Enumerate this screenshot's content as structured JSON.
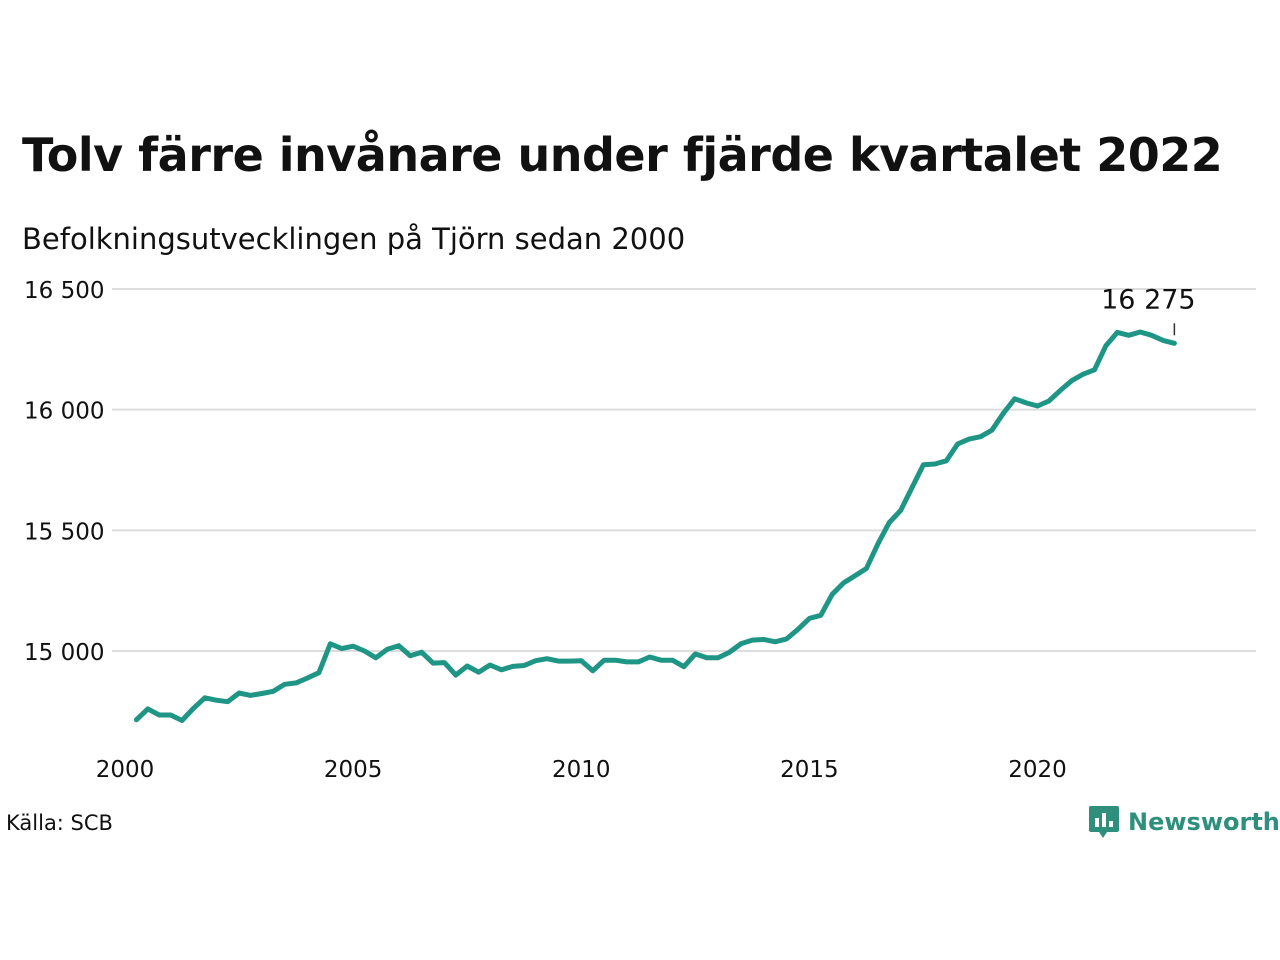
{
  "title": "Tolv färre invånare under fjärde kvartalet 2022",
  "subtitle": "Befolkningsutvecklingen på Tjörn sedan 2000",
  "source": "Källa: SCB",
  "brand": {
    "name": "Newsworthy",
    "icon": "newsworthy-logo-icon",
    "color": "#2e8f7d"
  },
  "chart_data": {
    "type": "line",
    "title": "Tolv färre invånare under fjärde kvartalet 2022",
    "subtitle": "Befolkningsutvecklingen på Tjörn sedan 2000",
    "xlabel": "",
    "ylabel": "",
    "xlim": [
      2000,
      2024
    ],
    "ylim": [
      14600,
      16520
    ],
    "yticks": [
      15000,
      15500,
      16000,
      16500
    ],
    "ytick_labels": [
      "15 000",
      "15 500",
      "16 000",
      "16 500"
    ],
    "xticks": [
      2000,
      2005,
      2010,
      2015,
      2020
    ],
    "xtick_labels": [
      "2000",
      "2005",
      "2010",
      "2015",
      "2020"
    ],
    "grid": true,
    "line_color": "#1e9585",
    "annotation": {
      "x": 2023.0,
      "y": 16275,
      "label": "16 275"
    },
    "series": [
      {
        "x": [
          2000.25,
          2000.5,
          2000.75,
          2001.0,
          2001.25,
          2001.5,
          2001.75,
          2002.0,
          2002.25,
          2002.5,
          2002.75,
          2003.0,
          2003.25,
          2003.5,
          2003.75,
          2004.0,
          2004.25,
          2004.5,
          2004.75,
          2005.0,
          2005.25,
          2005.5,
          2005.75,
          2006.0,
          2006.25,
          2006.5,
          2006.75,
          2007.0,
          2007.25,
          2007.5,
          2007.75,
          2008.0,
          2008.25,
          2008.5,
          2008.75,
          2009.0,
          2009.25,
          2009.5,
          2009.75,
          2010.0,
          2010.25,
          2010.5,
          2010.75,
          2011.0,
          2011.25,
          2011.5,
          2011.75,
          2012.0,
          2012.25,
          2012.5,
          2012.75,
          2013.0,
          2013.25,
          2013.5,
          2013.75,
          2014.0,
          2014.25,
          2014.5,
          2014.75,
          2015.0,
          2015.25,
          2015.5,
          2015.75,
          2016.0,
          2016.25,
          2016.5,
          2016.75,
          2017.0,
          2017.25,
          2017.5,
          2017.75,
          2018.0,
          2018.25,
          2018.5,
          2018.75,
          2019.0,
          2019.25,
          2019.5,
          2019.75,
          2020.0,
          2020.25,
          2020.5,
          2020.75,
          2021.0,
          2021.25,
          2021.5,
          2021.75,
          2022.0,
          2022.25,
          2022.5,
          2022.75,
          2023.0
        ],
        "y": [
          14715,
          14760,
          14735,
          14735,
          14712,
          14762,
          14806,
          14796,
          14790,
          14826,
          14816,
          14824,
          14833,
          14862,
          14868,
          14888,
          14910,
          15030,
          15010,
          15020,
          15000,
          14972,
          15007,
          15022,
          14980,
          14995,
          14950,
          14952,
          14900,
          14938,
          14912,
          14942,
          14922,
          14936,
          14940,
          14960,
          14968,
          14958,
          14958,
          14960,
          14918,
          14962,
          14962,
          14955,
          14955,
          14975,
          14962,
          14962,
          14935,
          14988,
          14972,
          14972,
          14995,
          15030,
          15045,
          15048,
          15038,
          15050,
          15090,
          15135,
          15148,
          15235,
          15282,
          15312,
          15342,
          15443,
          15532,
          15582,
          15677,
          15772,
          15775,
          15788,
          15858,
          15878,
          15888,
          15915,
          15985,
          16045,
          16028,
          16015,
          16036,
          16080,
          16120,
          16147,
          16165,
          16265,
          16320,
          16308,
          16322,
          16308,
          16287,
          16275
        ]
      }
    ]
  }
}
